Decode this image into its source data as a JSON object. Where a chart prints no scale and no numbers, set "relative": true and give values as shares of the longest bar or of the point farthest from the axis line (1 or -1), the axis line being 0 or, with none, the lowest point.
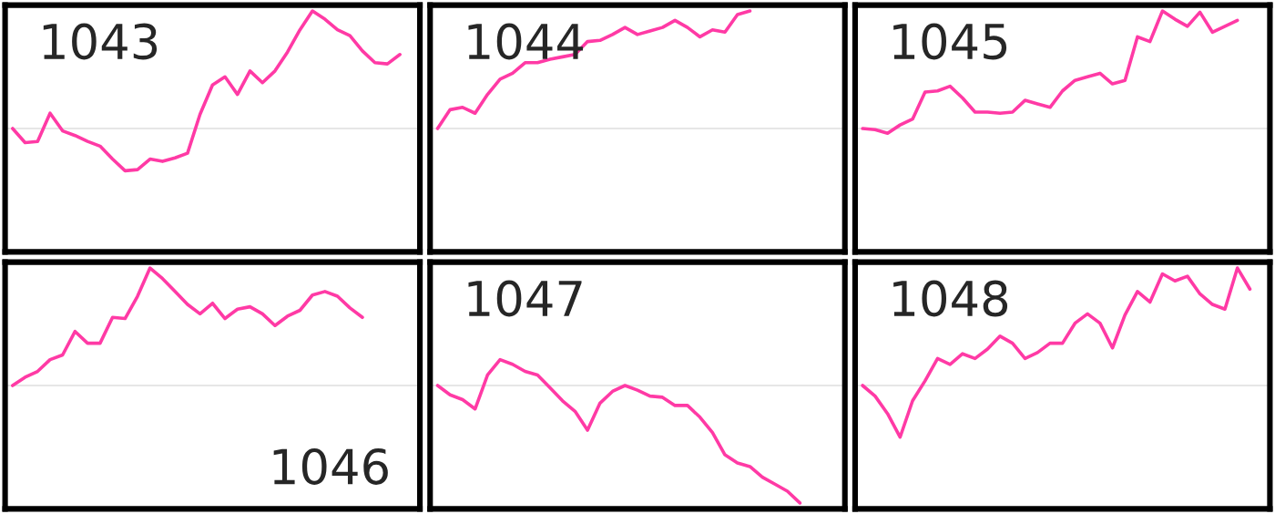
{
  "chart_data": [
    {
      "type": "line",
      "title": "1043",
      "relative": true,
      "categories": [
        null,
        null,
        null,
        null,
        null,
        null,
        null,
        null,
        null,
        null,
        null,
        null,
        null,
        null,
        null,
        null,
        null,
        null,
        null,
        null,
        null,
        null,
        null,
        null,
        null,
        null,
        null,
        null,
        null,
        null,
        null,
        null,
        null
      ],
      "series": [
        {
          "color": "#ff3aa5",
          "values": [
            0,
            -0.12,
            -0.11,
            0.13,
            -0.02,
            -0.06,
            -0.11,
            -0.15,
            -0.26,
            -0.36,
            -0.35,
            -0.26,
            -0.28,
            -0.25,
            -0.21,
            0.12,
            0.37,
            0.44,
            0.29,
            0.49,
            0.39,
            0.49,
            0.65,
            0.84,
            1,
            0.93,
            0.84,
            0.79,
            0.66,
            0.56,
            0.55,
            0.63,
            null
          ]
        }
      ],
      "legend": false,
      "grid": false
    },
    {
      "type": "line",
      "title": "1044",
      "relative": true,
      "categories": [
        null,
        null,
        null,
        null,
        null,
        null,
        null,
        null,
        null,
        null,
        null,
        null,
        null,
        null,
        null,
        null,
        null,
        null,
        null,
        null,
        null,
        null,
        null,
        null,
        null,
        null,
        null,
        null,
        null,
        null,
        null,
        null,
        null
      ],
      "series": [
        {
          "color": "#ff3aa5",
          "values": [
            0,
            0.16,
            0.18,
            0.13,
            0.29,
            0.42,
            0.47,
            0.56,
            0.56,
            0.59,
            0.61,
            0.63,
            0.74,
            0.75,
            0.8,
            0.86,
            0.8,
            0.83,
            0.86,
            0.92,
            0.86,
            0.78,
            0.84,
            0.82,
            0.97,
            1,
            null,
            null,
            null,
            null,
            null,
            null,
            null
          ]
        }
      ],
      "legend": false,
      "grid": false
    },
    {
      "type": "line",
      "title": "1045",
      "relative": true,
      "categories": [
        null,
        null,
        null,
        null,
        null,
        null,
        null,
        null,
        null,
        null,
        null,
        null,
        null,
        null,
        null,
        null,
        null,
        null,
        null,
        null,
        null,
        null,
        null,
        null,
        null,
        null,
        null,
        null,
        null,
        null,
        null,
        null,
        null
      ],
      "series": [
        {
          "color": "#ff3aa5",
          "values": [
            0,
            -0.01,
            -0.04,
            0.03,
            0.08,
            0.31,
            0.32,
            0.36,
            0.26,
            0.14,
            0.14,
            0.13,
            0.14,
            0.24,
            0.21,
            0.18,
            0.32,
            0.41,
            0.44,
            0.47,
            0.38,
            0.41,
            0.78,
            0.74,
            1,
            0.93,
            0.87,
            0.99,
            0.82,
            0.87,
            0.92,
            null,
            null
          ]
        }
      ],
      "legend": false,
      "grid": false
    },
    {
      "type": "line",
      "title": "1046",
      "relative": true,
      "categories": [
        null,
        null,
        null,
        null,
        null,
        null,
        null,
        null,
        null,
        null,
        null,
        null,
        null,
        null,
        null,
        null,
        null,
        null,
        null,
        null,
        null,
        null,
        null,
        null,
        null,
        null,
        null,
        null,
        null,
        null,
        null,
        null,
        null
      ],
      "series": [
        {
          "color": "#ff3aa5",
          "values": [
            0,
            0.07,
            0.12,
            0.22,
            0.26,
            0.46,
            0.36,
            0.36,
            0.58,
            0.57,
            0.76,
            1,
            0.91,
            0.8,
            0.69,
            0.61,
            0.7,
            0.57,
            0.65,
            0.67,
            0.61,
            0.51,
            0.59,
            0.64,
            0.77,
            0.8,
            0.76,
            0.66,
            0.58,
            null,
            null,
            null,
            null
          ]
        }
      ],
      "legend": false,
      "grid": false
    },
    {
      "type": "line",
      "title": "1047",
      "relative": true,
      "categories": [
        null,
        null,
        null,
        null,
        null,
        null,
        null,
        null,
        null,
        null,
        null,
        null,
        null,
        null,
        null,
        null,
        null,
        null,
        null,
        null,
        null,
        null,
        null,
        null,
        null,
        null,
        null,
        null,
        null,
        null,
        null,
        null,
        null
      ],
      "series": [
        {
          "color": "#ff3aa5",
          "values": [
            0,
            -0.08,
            -0.12,
            -0.2,
            0.09,
            0.22,
            0.18,
            0.12,
            0.09,
            -0.02,
            -0.13,
            -0.22,
            -0.38,
            -0.15,
            -0.05,
            0,
            -0.04,
            -0.09,
            -0.1,
            -0.17,
            -0.17,
            -0.27,
            -0.4,
            -0.59,
            -0.66,
            -0.69,
            -0.78,
            -0.84,
            -0.9,
            -1,
            null,
            null,
            null
          ]
        }
      ],
      "legend": false,
      "grid": false
    },
    {
      "type": "line",
      "title": "1048",
      "relative": true,
      "categories": [
        null,
        null,
        null,
        null,
        null,
        null,
        null,
        null,
        null,
        null,
        null,
        null,
        null,
        null,
        null,
        null,
        null,
        null,
        null,
        null,
        null,
        null,
        null,
        null,
        null,
        null,
        null,
        null,
        null,
        null,
        null,
        null,
        null
      ],
      "series": [
        {
          "color": "#ff3aa5",
          "values": [
            0,
            -0.09,
            -0.24,
            -0.44,
            -0.13,
            0.04,
            0.23,
            0.18,
            0.27,
            0.23,
            0.31,
            0.42,
            0.36,
            0.23,
            0.28,
            0.36,
            0.36,
            0.53,
            0.61,
            0.53,
            0.32,
            0.6,
            0.8,
            0.71,
            0.95,
            0.89,
            0.93,
            0.78,
            0.69,
            0.65,
            1,
            0.82,
            null
          ]
        }
      ],
      "legend": false,
      "grid": false
    }
  ]
}
